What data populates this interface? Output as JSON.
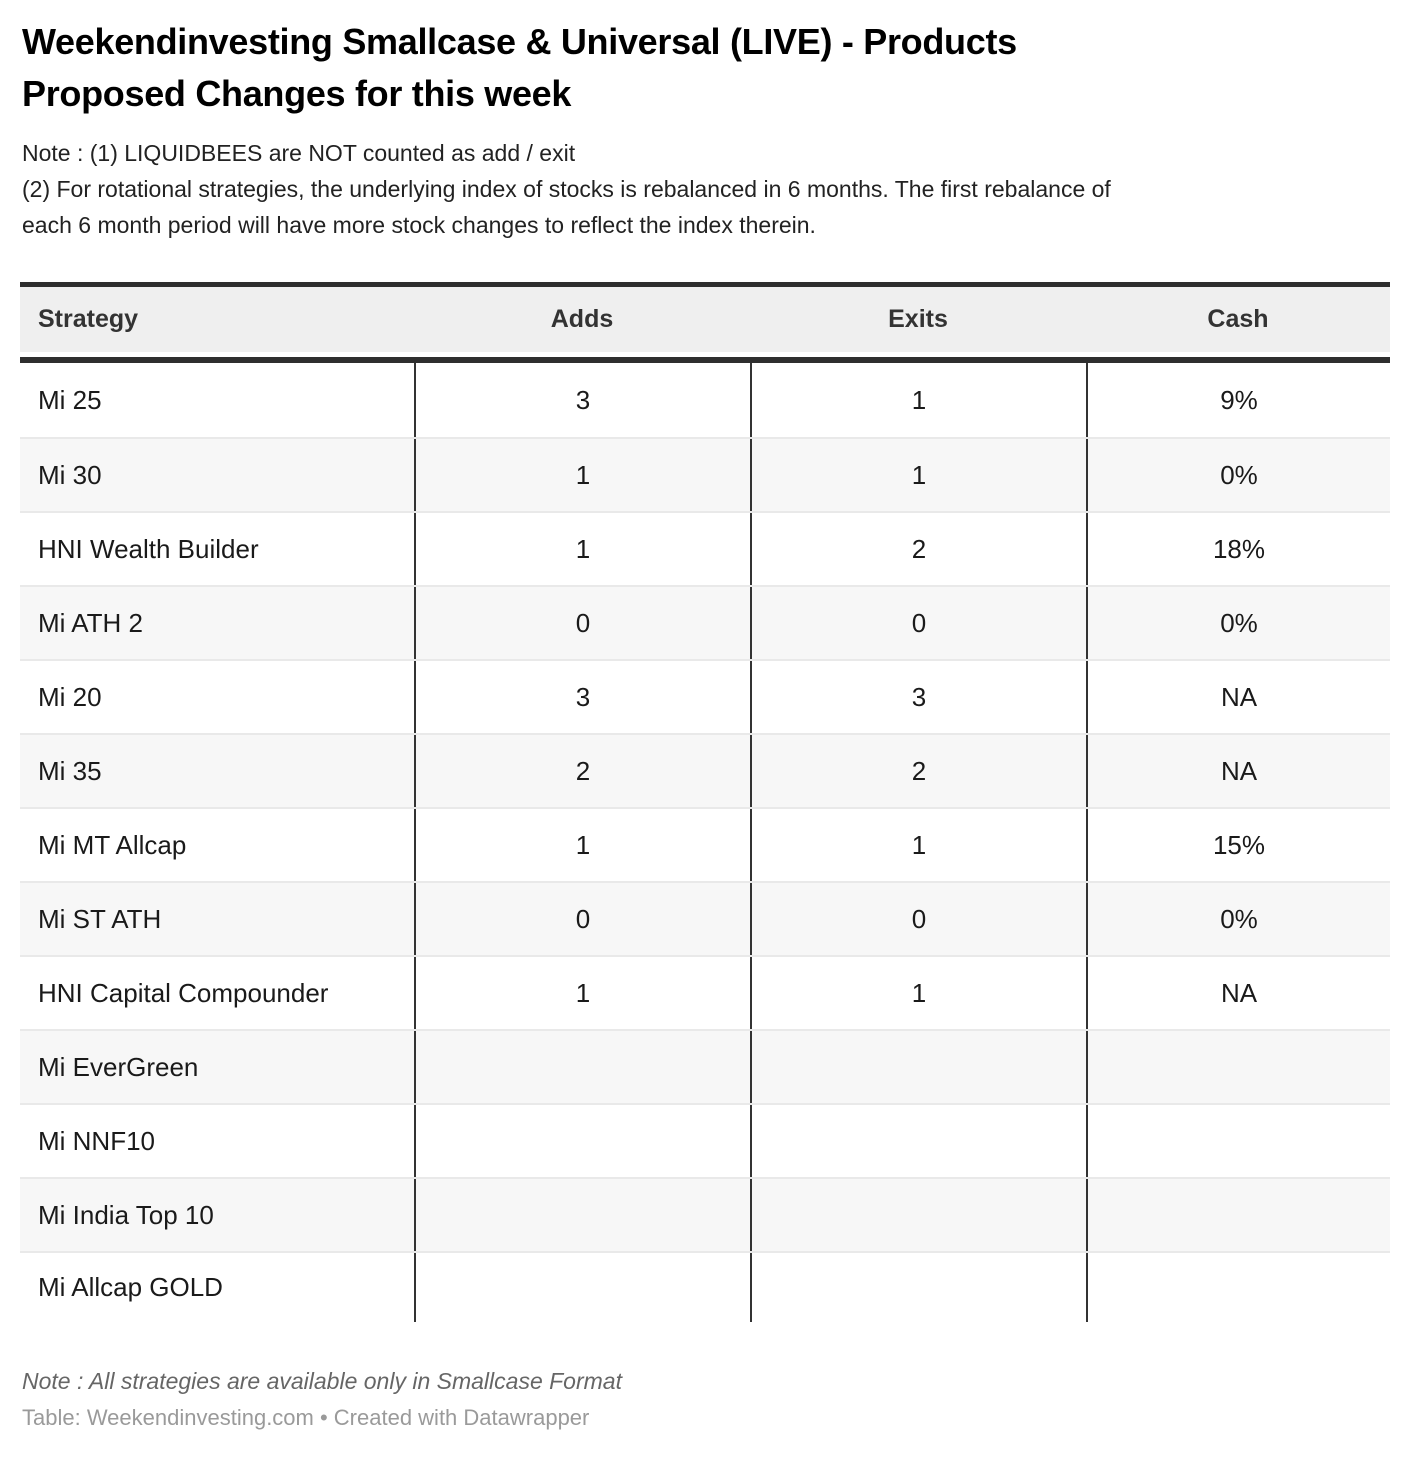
{
  "title": {
    "line1": "Weekendinvesting Smallcase & Universal (LIVE) - Products",
    "line2": "Proposed Changes for this week"
  },
  "notes": {
    "line1": "Note : (1) LIQUIDBEES are NOT counted as add / exit",
    "line2": "(2) For rotational strategies, the underlying index of stocks is rebalanced in 6 months. The first rebalance of",
    "line3": "each 6 month period will have more stock changes to reflect the index therein."
  },
  "chart_data": {
    "type": "table",
    "title": "Weekendinvesting Smallcase & Universal (LIVE) - Products Proposed Changes for this week",
    "columns": [
      "Strategy",
      "Adds",
      "Exits",
      "Cash"
    ],
    "rows": [
      [
        "Mi 25",
        "3",
        "1",
        "9%"
      ],
      [
        "Mi 30",
        "1",
        "1",
        "0%"
      ],
      [
        "HNI Wealth Builder",
        "1",
        "2",
        "18%"
      ],
      [
        "Mi ATH 2",
        "0",
        "0",
        "0%"
      ],
      [
        "Mi 20",
        "3",
        "3",
        "NA"
      ],
      [
        "Mi 35",
        "2",
        "2",
        "NA"
      ],
      [
        "Mi MT Allcap",
        "1",
        "1",
        "15%"
      ],
      [
        "Mi ST ATH",
        "0",
        "0",
        "0%"
      ],
      [
        "HNI Capital Compounder",
        "1",
        "1",
        "NA"
      ],
      [
        "Mi EverGreen",
        "",
        "",
        ""
      ],
      [
        "Mi NNF10",
        "",
        "",
        ""
      ],
      [
        "Mi India Top 10",
        "",
        "",
        ""
      ],
      [
        "Mi Allcap GOLD",
        "",
        "",
        ""
      ]
    ],
    "layout_hints": {
      "striped_rows": true,
      "header_background": true,
      "column_alignment": [
        "left",
        "center",
        "center",
        "center"
      ]
    }
  },
  "footer": {
    "note": "Note : All strategies are available only in Smallcase Format",
    "attribution": "Table: Weekendinvesting.com • Created with Datawrapper"
  },
  "colors": {
    "rule_dark": "#2e2e2e",
    "header_background": "#efefef",
    "row_stripe": "#f7f7f7",
    "row_separator": "#e9e9e9",
    "column_divider": "#333333",
    "title_text": "#000000",
    "cell_text": "#1a1a1a",
    "footer_note_text": "#666666",
    "attribution_text": "#9a9a9a"
  }
}
